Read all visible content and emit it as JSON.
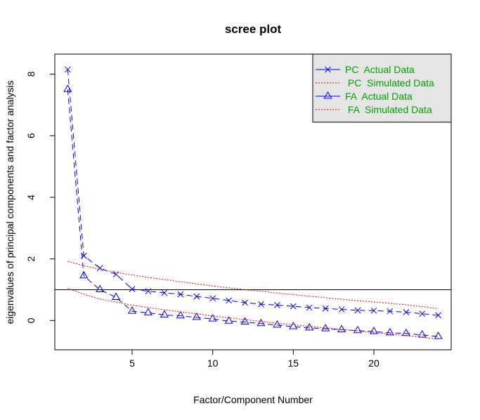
{
  "chart_data": {
    "type": "line",
    "title": "scree plot",
    "xlabel": "Factor/Component Number",
    "ylabel": "eigenvalues of principal components and factor analysis",
    "xlim": [
      0.2,
      24.8
    ],
    "ylim": [
      -0.95,
      8.65
    ],
    "x_ticks": [
      5,
      10,
      15,
      20
    ],
    "y_ticks": [
      0,
      2,
      4,
      6,
      8
    ],
    "grid": false,
    "legend_position": "top-right",
    "reference_line": 1,
    "x": [
      1,
      2,
      3,
      4,
      5,
      6,
      7,
      8,
      9,
      10,
      11,
      12,
      13,
      14,
      15,
      16,
      17,
      18,
      19,
      20,
      21,
      22,
      23,
      24
    ],
    "series": [
      {
        "name": "PC  Actual Data",
        "color": "#0000ff",
        "marker": "x",
        "line": "dashed",
        "values": [
          8.15,
          2.1,
          1.7,
          1.5,
          1.02,
          0.95,
          0.9,
          0.85,
          0.78,
          0.72,
          0.65,
          0.58,
          0.53,
          0.5,
          0.46,
          0.42,
          0.39,
          0.36,
          0.33,
          0.32,
          0.3,
          0.27,
          0.22,
          0.17
        ]
      },
      {
        "name": " PC  Simulated Data",
        "color": "#ff0000",
        "marker": "none",
        "line": "dotted",
        "values": [
          1.92,
          1.78,
          1.66,
          1.56,
          1.48,
          1.4,
          1.33,
          1.26,
          1.19,
          1.12,
          1.06,
          1.0,
          0.95,
          0.89,
          0.84,
          0.79,
          0.74,
          0.69,
          0.64,
          0.6,
          0.56,
          0.51,
          0.45,
          0.38
        ]
      },
      {
        "name": "FA  Actual Data",
        "color": "#0000ff",
        "marker": "triangle",
        "line": "dashed",
        "values": [
          7.5,
          1.45,
          1.0,
          0.75,
          0.3,
          0.25,
          0.18,
          0.15,
          0.1,
          0.05,
          -0.02,
          -0.05,
          -0.1,
          -0.15,
          -0.2,
          -0.24,
          -0.27,
          -0.3,
          -0.33,
          -0.36,
          -0.4,
          -0.42,
          -0.47,
          -0.52
        ]
      },
      {
        "name": " FA  Simulated Data",
        "color": "#ff0000",
        "marker": "none",
        "line": "dotted",
        "values": [
          1.05,
          0.85,
          0.7,
          0.6,
          0.5,
          0.42,
          0.35,
          0.28,
          0.22,
          0.15,
          0.09,
          0.03,
          -0.03,
          -0.09,
          -0.14,
          -0.19,
          -0.24,
          -0.29,
          -0.34,
          -0.39,
          -0.44,
          -0.49,
          -0.55,
          -0.6
        ]
      }
    ]
  }
}
